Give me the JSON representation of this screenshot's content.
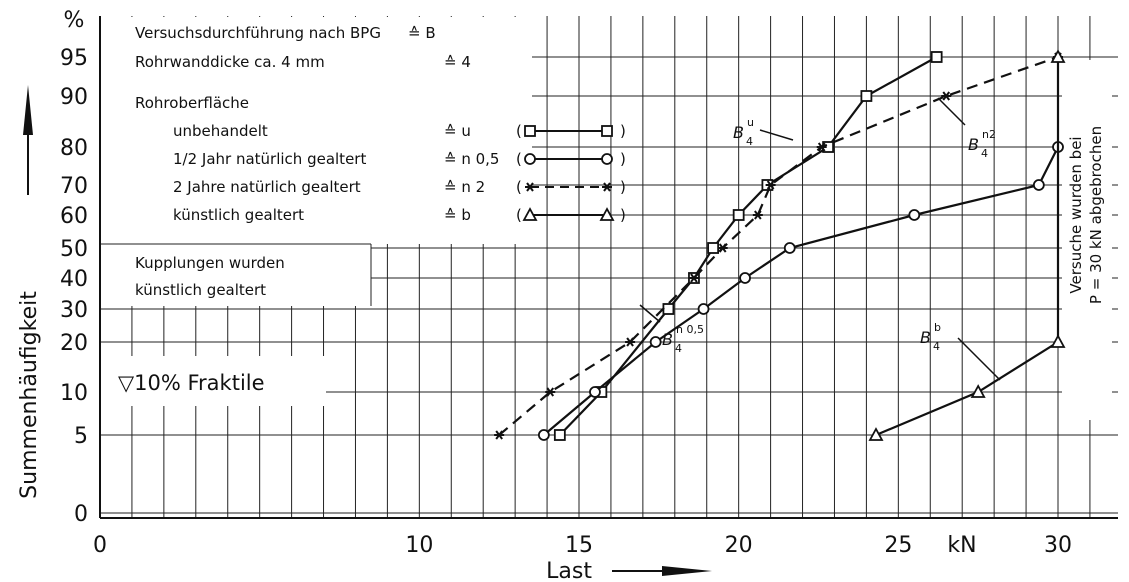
{
  "chart_data": {
    "type": "line",
    "xlabel": "Last",
    "ylabel": "Summenhäufigkeit",
    "x_unit": "kN",
    "y_unit": "%",
    "xlim": [
      0,
      32
    ],
    "x_ticks": [
      "0",
      "10",
      "15",
      "20",
      "25",
      "30"
    ],
    "y_ticks": [
      "0",
      "5",
      "10",
      "20",
      "30",
      "40",
      "50",
      "60",
      "70",
      "80",
      "90",
      "95"
    ],
    "y_scale": "probability",
    "grid": true,
    "legend_lines": [
      {
        "text": "Versuchsdurchführung nach BPG",
        "code": "≙ B"
      },
      {
        "text": "Rohrwanddicke ca. 4 mm",
        "code": "≙ 4"
      },
      {
        "text": "Rohroberfläche",
        "code": ""
      },
      {
        "text": "unbehandelt",
        "code": "≙ u"
      },
      {
        "text": "1/2 Jahr natürlich gealtert",
        "code": "≙ n 0,5"
      },
      {
        "text": "2 Jahre natürlich gealtert",
        "code": "≙ n 2"
      },
      {
        "text": "künstlich gealtert",
        "code": "≙ b"
      }
    ],
    "note_1": "Kupplungen wurden",
    "note_2": "künstlich gealtert",
    "fractile_note": "▽10% Fraktile",
    "abort_note_1": "Versuche wurden bei",
    "abort_note_2": "P = 30 kN abgebrochen",
    "series": [
      {
        "name": "B4u",
        "label_base": "B",
        "label_sub": "4",
        "label_sup": "u",
        "marker": "square",
        "style": "solid",
        "x": [
          14.4,
          15.7,
          17.8,
          18.6,
          19.2,
          20.0,
          20.9,
          22.8,
          24.0,
          26.2
        ],
        "y": [
          5,
          10,
          30,
          40,
          50,
          60,
          70,
          80,
          90,
          95
        ]
      },
      {
        "name": "B4n0,5",
        "label_base": "B",
        "label_sub": "4",
        "label_sup": "n 0,5",
        "marker": "circle",
        "style": "solid",
        "x": [
          13.9,
          15.5,
          17.4,
          18.9,
          20.2,
          21.6,
          25.5,
          29.4,
          30.0
        ],
        "y": [
          5,
          10,
          20,
          30,
          40,
          50,
          60,
          70,
          80
        ]
      },
      {
        "name": "B4n2",
        "label_base": "B",
        "label_sub": "4",
        "label_sup": "n2",
        "marker": "star",
        "style": "dashed",
        "x": [
          12.5,
          14.1,
          16.6,
          18.6,
          19.5,
          20.6,
          21.0,
          22.6,
          26.5,
          30.0
        ],
        "y": [
          5,
          10,
          20,
          40,
          50,
          60,
          70,
          80,
          90,
          95
        ]
      },
      {
        "name": "B4b",
        "label_base": "B",
        "label_sub": "4",
        "label_sup": "b",
        "marker": "triangle",
        "style": "solid",
        "x": [
          24.3,
          27.5,
          30.0,
          30.0
        ],
        "y": [
          5,
          10,
          20,
          95
        ]
      }
    ]
  }
}
